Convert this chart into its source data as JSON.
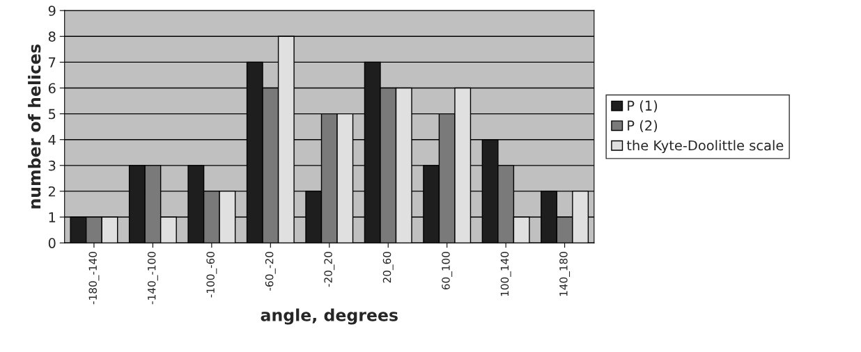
{
  "chart_data": {
    "type": "bar",
    "xlabel": "angle, degrees",
    "ylabel": "number of helices",
    "categories": [
      "-180_-140",
      "-140_-100",
      "-100_-60",
      "-60_-20",
      "-20_20",
      "20_60",
      "60_100",
      "100_140",
      "140_180"
    ],
    "series": [
      {
        "name": "P (1)",
        "color": "#1e1e1e",
        "values": [
          1,
          3,
          3,
          7,
          2,
          7,
          3,
          4,
          2
        ]
      },
      {
        "name": "P (2)",
        "color": "#7a7a7a",
        "values": [
          1,
          3,
          2,
          6,
          5,
          6,
          5,
          3,
          1
        ]
      },
      {
        "name": "the Kyte-Doolittle scale",
        "color": "#e0e0e0",
        "values": [
          1,
          1,
          2,
          8,
          5,
          6,
          6,
          1,
          2
        ]
      }
    ],
    "ylim": [
      0,
      9
    ],
    "yticks": [
      0,
      1,
      2,
      3,
      4,
      5,
      6,
      7,
      8,
      9
    ],
    "grid": "y",
    "legend": "right"
  }
}
